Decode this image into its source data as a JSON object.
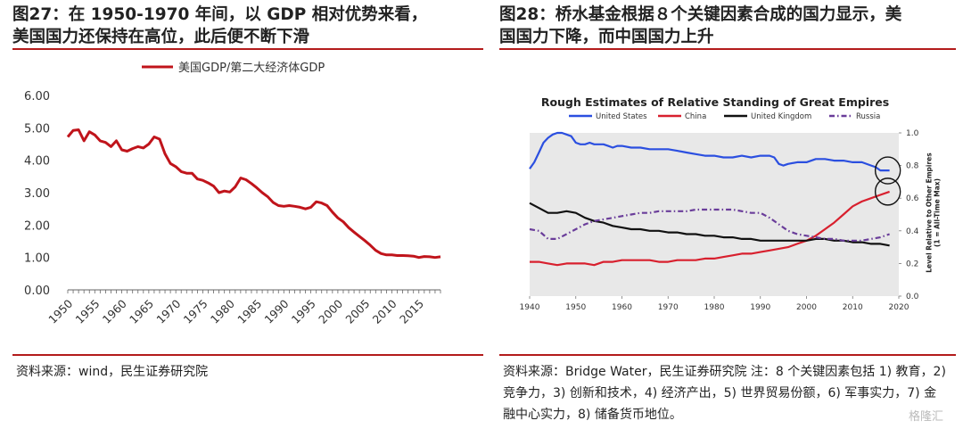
{
  "left": {
    "title_line1": "图27：在 1950-1970 年间，以 GDP 相对优势来看，",
    "title_line2": "美国国力还保持在高位，此后便不断下滑",
    "source": "资料来源：wind，民生证券研究院"
  },
  "right": {
    "title_line1": "图28：桥水基金根据８个关键因素合成的国力显示，美",
    "title_line2": "国国力下降，而中国国力上升",
    "source": "资料来源：Bridge Water，民生证券研究院 注：8 个关键因素包括 1) 教育，2) 竞争力，3) 创新和技术，4) 经济产出，5) 世界贸易份额，6) 军事实力，7) 金融中心实力，8) 储备货币地位。"
  },
  "watermark": "格隆汇",
  "colors": {
    "accent_red": "#b31b1b",
    "us_blue": "#2b4fe0",
    "china_red": "#d8202e",
    "uk_black": "#111111",
    "russia_purple": "#6a3d9a"
  },
  "chart_data": [
    {
      "type": "line",
      "title": "",
      "legend": "美国GDP/第二大经济体GDP",
      "legend_placement": "top",
      "xlabel": "",
      "ylabel": "",
      "xlim": [
        1950,
        2019
      ],
      "ylim": [
        0,
        6
      ],
      "x_ticks": [
        1950,
        1955,
        1960,
        1965,
        1970,
        1975,
        1980,
        1985,
        1990,
        1995,
        2000,
        2005,
        2010,
        2015
      ],
      "y_ticks": [
        "0.00",
        "1.00",
        "2.00",
        "3.00",
        "4.00",
        "5.00",
        "6.00"
      ],
      "color": "#c0141b",
      "grid": false,
      "series": [
        {
          "x": [
            1950,
            1951,
            1952,
            1953,
            1954,
            1955,
            1956,
            1957,
            1958,
            1959,
            1960,
            1961,
            1962,
            1963,
            1964,
            1965,
            1966,
            1967,
            1968,
            1969,
            1970,
            1971,
            1972,
            1973,
            1974,
            1975,
            1976,
            1977,
            1978,
            1979,
            1980,
            1981,
            1982,
            1983,
            1984,
            1985,
            1986,
            1987,
            1988,
            1989,
            1990,
            1991,
            1992,
            1993,
            1994,
            1995,
            1996,
            1997,
            1998,
            1999,
            2000,
            2001,
            2002,
            2003,
            2004,
            2005,
            2006,
            2007,
            2008,
            2009,
            2010,
            2011,
            2012,
            2013,
            2014,
            2015,
            2016,
            2017,
            2018,
            2019
          ],
          "values": [
            4.72,
            4.92,
            4.94,
            4.6,
            4.88,
            4.78,
            4.6,
            4.55,
            4.42,
            4.6,
            4.32,
            4.28,
            4.36,
            4.42,
            4.38,
            4.5,
            4.72,
            4.65,
            4.2,
            3.9,
            3.8,
            3.65,
            3.6,
            3.6,
            3.42,
            3.38,
            3.3,
            3.2,
            3.0,
            3.05,
            3.02,
            3.18,
            3.45,
            3.4,
            3.28,
            3.15,
            3.0,
            2.88,
            2.7,
            2.6,
            2.58,
            2.6,
            2.58,
            2.55,
            2.5,
            2.55,
            2.72,
            2.68,
            2.6,
            2.4,
            2.22,
            2.1,
            1.92,
            1.78,
            1.65,
            1.52,
            1.38,
            1.22,
            1.12,
            1.08,
            1.08,
            1.06,
            1.06,
            1.05,
            1.04,
            1.0,
            1.03,
            1.02,
            1.0,
            1.02
          ]
        }
      ]
    },
    {
      "type": "line",
      "title": "Rough Estimates of Relative Standing of Great Empires",
      "xlabel": "",
      "ylabel": "Level Relative to Other Empires (1 = All-Time Max)",
      "y_axis_side": "right",
      "xlim": [
        1940,
        2020
      ],
      "ylim": [
        0,
        1.0
      ],
      "x_ticks": [
        1940,
        1950,
        1960,
        1970,
        1980,
        1990,
        2000,
        2010,
        2020
      ],
      "y_ticks": [
        "0.0",
        "0.2",
        "0.4",
        "0.6",
        "0.8",
        "1.0"
      ],
      "legend_placement": "top",
      "grid": false,
      "background": "#e8e8e8",
      "annotations": [
        "circle around United States end",
        "circle around China end"
      ],
      "series": [
        {
          "name": "United States",
          "color": "#2b4fe0",
          "dash": "solid",
          "x": [
            1940,
            1941,
            1942,
            1943,
            1944,
            1945,
            1946,
            1947,
            1948,
            1949,
            1950,
            1951,
            1952,
            1953,
            1954,
            1955,
            1956,
            1957,
            1958,
            1959,
            1960,
            1962,
            1964,
            1966,
            1968,
            1970,
            1972,
            1974,
            1976,
            1978,
            1980,
            1982,
            1984,
            1986,
            1988,
            1990,
            1992,
            1993,
            1994,
            1995,
            1996,
            1998,
            2000,
            2002,
            2004,
            2006,
            2008,
            2010,
            2012,
            2014,
            2015,
            2016,
            2017,
            2018
          ],
          "values": [
            0.78,
            0.82,
            0.88,
            0.94,
            0.97,
            0.99,
            1.0,
            1.0,
            0.99,
            0.98,
            0.94,
            0.93,
            0.93,
            0.94,
            0.93,
            0.93,
            0.93,
            0.92,
            0.91,
            0.92,
            0.92,
            0.91,
            0.91,
            0.9,
            0.9,
            0.9,
            0.89,
            0.88,
            0.87,
            0.86,
            0.86,
            0.85,
            0.85,
            0.86,
            0.85,
            0.86,
            0.86,
            0.85,
            0.81,
            0.8,
            0.81,
            0.82,
            0.82,
            0.84,
            0.84,
            0.83,
            0.83,
            0.82,
            0.82,
            0.8,
            0.79,
            0.77,
            0.77,
            0.77
          ]
        },
        {
          "name": "China",
          "color": "#d8202e",
          "dash": "solid",
          "x": [
            1940,
            1942,
            1944,
            1946,
            1948,
            1950,
            1952,
            1954,
            1956,
            1958,
            1960,
            1962,
            1964,
            1966,
            1968,
            1970,
            1972,
            1974,
            1976,
            1978,
            1980,
            1982,
            1984,
            1986,
            1988,
            1990,
            1992,
            1994,
            1996,
            1998,
            2000,
            2002,
            2004,
            2006,
            2008,
            2010,
            2012,
            2014,
            2016,
            2018
          ],
          "values": [
            0.21,
            0.21,
            0.2,
            0.19,
            0.2,
            0.2,
            0.2,
            0.19,
            0.21,
            0.21,
            0.22,
            0.22,
            0.22,
            0.22,
            0.21,
            0.21,
            0.22,
            0.22,
            0.22,
            0.23,
            0.23,
            0.24,
            0.25,
            0.26,
            0.26,
            0.27,
            0.28,
            0.29,
            0.3,
            0.32,
            0.34,
            0.37,
            0.41,
            0.45,
            0.5,
            0.55,
            0.58,
            0.6,
            0.62,
            0.64
          ]
        },
        {
          "name": "United Kingdom",
          "color": "#111111",
          "dash": "solid",
          "x": [
            1940,
            1942,
            1944,
            1946,
            1948,
            1950,
            1952,
            1954,
            1956,
            1958,
            1960,
            1962,
            1964,
            1966,
            1968,
            1970,
            1972,
            1974,
            1976,
            1978,
            1980,
            1982,
            1984,
            1986,
            1988,
            1990,
            1992,
            1994,
            1996,
            1998,
            2000,
            2002,
            2004,
            2006,
            2008,
            2010,
            2012,
            2014,
            2016,
            2018
          ],
          "values": [
            0.57,
            0.54,
            0.51,
            0.51,
            0.52,
            0.51,
            0.48,
            0.46,
            0.45,
            0.43,
            0.42,
            0.41,
            0.41,
            0.4,
            0.4,
            0.39,
            0.39,
            0.38,
            0.38,
            0.37,
            0.37,
            0.36,
            0.36,
            0.35,
            0.35,
            0.34,
            0.34,
            0.34,
            0.34,
            0.34,
            0.34,
            0.35,
            0.35,
            0.34,
            0.34,
            0.33,
            0.33,
            0.32,
            0.32,
            0.31
          ]
        },
        {
          "name": "Russia",
          "color": "#6a3d9a",
          "dash": "dashdot",
          "x": [
            1940,
            1942,
            1944,
            1946,
            1948,
            1950,
            1952,
            1954,
            1956,
            1958,
            1960,
            1962,
            1964,
            1966,
            1968,
            1970,
            1972,
            1974,
            1976,
            1978,
            1980,
            1982,
            1984,
            1986,
            1988,
            1990,
            1992,
            1994,
            1996,
            1998,
            2000,
            2002,
            2004,
            2006,
            2008,
            2010,
            2012,
            2014,
            2016,
            2018
          ],
          "values": [
            0.41,
            0.4,
            0.35,
            0.35,
            0.38,
            0.41,
            0.44,
            0.46,
            0.47,
            0.48,
            0.49,
            0.5,
            0.51,
            0.51,
            0.52,
            0.52,
            0.52,
            0.52,
            0.53,
            0.53,
            0.53,
            0.53,
            0.53,
            0.52,
            0.51,
            0.51,
            0.48,
            0.44,
            0.4,
            0.38,
            0.37,
            0.36,
            0.35,
            0.35,
            0.34,
            0.34,
            0.34,
            0.35,
            0.36,
            0.38
          ]
        }
      ]
    }
  ]
}
